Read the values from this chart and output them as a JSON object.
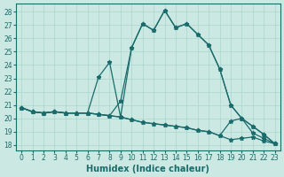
{
  "xlabel": "Humidex (Indice chaleur)",
  "bg_color": "#cce8e3",
  "line_color": "#1a6b6b",
  "grid_color": "#aad4ce",
  "xlim": [
    -0.5,
    23.5
  ],
  "ylim": [
    17.6,
    28.6
  ],
  "x_ticks": [
    0,
    1,
    2,
    3,
    4,
    5,
    6,
    7,
    8,
    9,
    10,
    11,
    12,
    13,
    14,
    15,
    16,
    17,
    18,
    19,
    20,
    21,
    22,
    23
  ],
  "y_ticks": [
    18,
    19,
    20,
    21,
    22,
    23,
    24,
    25,
    26,
    27,
    28
  ],
  "series_bottom": [
    20.8,
    20.5,
    20.4,
    20.5,
    20.4,
    20.4,
    20.4,
    20.3,
    20.2,
    20.1,
    19.9,
    19.7,
    19.6,
    19.5,
    19.4,
    19.3,
    19.1,
    19.0,
    18.7,
    18.4,
    18.5,
    18.6,
    18.3,
    18.1
  ],
  "series_peak": [
    20.8,
    20.5,
    20.4,
    20.5,
    20.4,
    20.4,
    20.4,
    20.3,
    20.2,
    21.3,
    25.3,
    27.1,
    26.6,
    28.1,
    26.8,
    27.1,
    26.3,
    25.5,
    23.7,
    21.0,
    20.0,
    19.4,
    18.8,
    18.1
  ],
  "series_volatile": [
    20.8,
    20.5,
    20.4,
    20.5,
    20.4,
    20.4,
    20.4,
    23.1,
    24.2,
    20.1,
    25.3,
    27.1,
    26.6,
    28.1,
    26.8,
    27.1,
    26.3,
    25.5,
    23.7,
    21.0,
    20.0,
    19.4,
    18.8,
    18.1
  ],
  "series_mid": [
    20.8,
    20.5,
    20.4,
    20.5,
    20.4,
    20.4,
    20.4,
    20.3,
    20.2,
    20.1,
    19.9,
    19.7,
    19.6,
    19.5,
    19.4,
    19.3,
    19.1,
    19.0,
    18.7,
    19.8,
    20.0,
    18.9,
    18.5,
    18.1
  ]
}
